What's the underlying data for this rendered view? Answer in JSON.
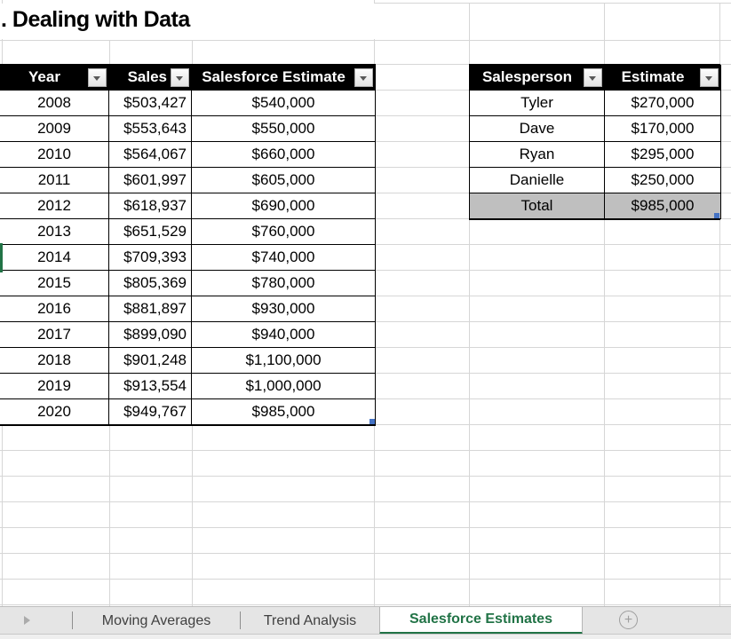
{
  "title": ". Dealing with Data",
  "sales_table": {
    "headers": [
      "Year",
      "Sales",
      "Salesforce Estimate"
    ],
    "rows": [
      [
        "2008",
        "$503,427",
        "$540,000"
      ],
      [
        "2009",
        "$553,643",
        "$550,000"
      ],
      [
        "2010",
        "$564,067",
        "$660,000"
      ],
      [
        "2011",
        "$601,997",
        "$605,000"
      ],
      [
        "2012",
        "$618,937",
        "$690,000"
      ],
      [
        "2013",
        "$651,529",
        "$760,000"
      ],
      [
        "2014",
        "$709,393",
        "$740,000"
      ],
      [
        "2015",
        "$805,369",
        "$780,000"
      ],
      [
        "2016",
        "$881,897",
        "$930,000"
      ],
      [
        "2017",
        "$899,090",
        "$940,000"
      ],
      [
        "2018",
        "$901,248",
        "$1,100,000"
      ],
      [
        "2019",
        "$913,554",
        "$1,000,000"
      ],
      [
        "2020",
        "$949,767",
        "$985,000"
      ]
    ]
  },
  "salesperson_table": {
    "headers": [
      "Salesperson",
      "Estimate"
    ],
    "rows": [
      [
        "Tyler",
        "$270,000"
      ],
      [
        "Dave",
        "$170,000"
      ],
      [
        "Ryan",
        "$295,000"
      ],
      [
        "Danielle",
        "$250,000"
      ]
    ],
    "total_row": [
      "Total",
      "$985,000"
    ]
  },
  "sheet_bar": {
    "tabs": [
      {
        "label": "Moving Averages",
        "active": false
      },
      {
        "label": "Trend Analysis",
        "active": false
      },
      {
        "label": "Salesforce Estimates",
        "active": true
      }
    ],
    "add_sheet_label": "+"
  },
  "colors": {
    "table_header_bg": "#000000",
    "table_header_text": "#ffffff",
    "total_row_bg": "#bfbfbf",
    "gridline": "#d6d6d6",
    "active_tab_green": "#217346",
    "selection_green": "#217346",
    "resize_handle_blue": "#4472c4"
  }
}
